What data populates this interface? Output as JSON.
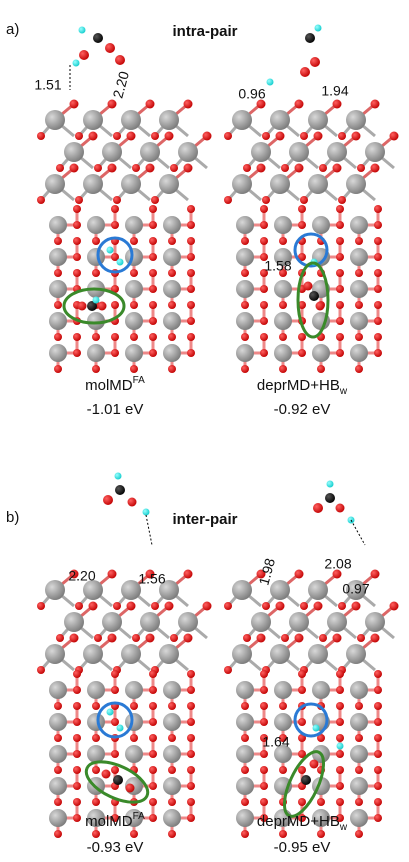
{
  "panels": [
    {
      "letter": "a)",
      "title": "intra-pair",
      "structures": [
        {
          "name": "molMD",
          "name_sup": "FA",
          "energy": "-1.01 eV",
          "distances": [
            "1.51",
            "2.20"
          ]
        },
        {
          "name": "deprMD+HB",
          "name_sub": "w",
          "energy": "-0.92 eV",
          "distances": [
            "0.96",
            "1.94",
            "1.58"
          ]
        }
      ]
    },
    {
      "letter": "b)",
      "title": "inter-pair",
      "structures": [
        {
          "name": "molMD",
          "name_sup": "FA",
          "energy": "-0.93 eV",
          "distances": [
            "2.20",
            "1.56"
          ]
        },
        {
          "name": "deprMD+HB",
          "name_sub": "w",
          "energy": "-0.95 eV",
          "distances": [
            "1.98",
            "2.08",
            "0.97",
            "1.64"
          ]
        }
      ]
    }
  ]
}
